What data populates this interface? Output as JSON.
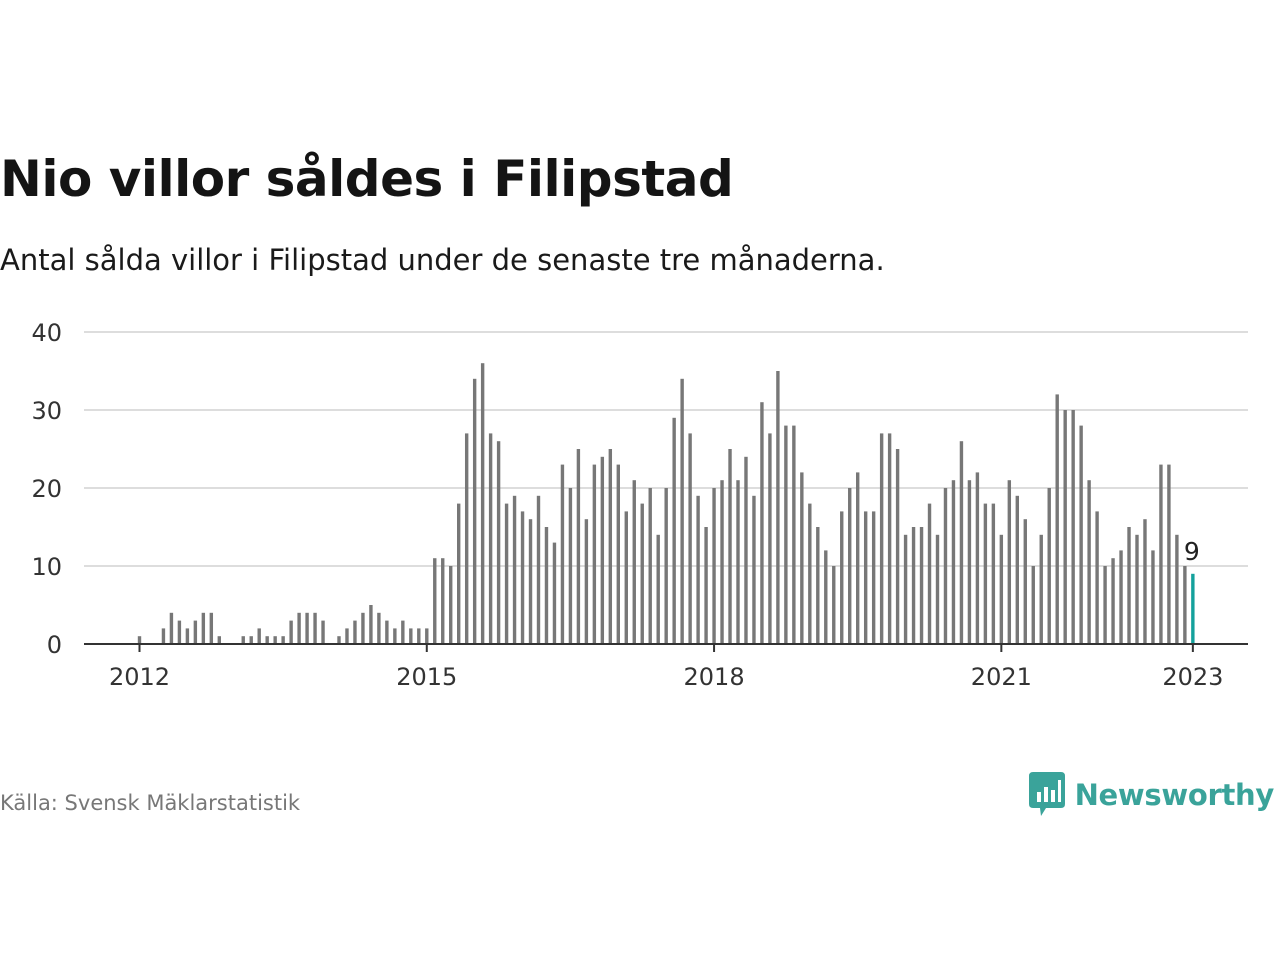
{
  "title": "Nio villor såldes i Filipstad",
  "subtitle": "Antal sålda villor i Filipstad under de senaste tre månaderna.",
  "source": "Källa: Svensk Mäklarstatistik",
  "brand": {
    "name": "Newsworthy",
    "icon": "newsworthy-logo-icon",
    "color": "#3aa39a"
  },
  "colors": {
    "bar": "#777777",
    "highlight": "#14a19c",
    "grid": "#dddddd",
    "axis": "#333333",
    "text": "#333333"
  },
  "chart_data": {
    "type": "bar",
    "title": "",
    "xlabel": "",
    "ylabel": "",
    "ylim": [
      0,
      40
    ],
    "yticks": [
      0,
      10,
      20,
      30,
      40
    ],
    "xtick_labels": [
      "2012",
      "2015",
      "2018",
      "2021",
      "2023"
    ],
    "grid": true,
    "start": "2012-01",
    "end": "2023-01",
    "values": [
      1,
      0,
      0,
      2,
      4,
      3,
      2,
      3,
      4,
      4,
      1,
      0,
      0,
      1,
      1,
      2,
      1,
      1,
      1,
      3,
      4,
      4,
      4,
      3,
      0,
      1,
      2,
      3,
      4,
      5,
      4,
      3,
      2,
      3,
      2,
      2,
      2,
      11,
      11,
      10,
      18,
      27,
      34,
      36,
      27,
      26,
      18,
      19,
      17,
      16,
      19,
      15,
      13,
      23,
      20,
      25,
      16,
      23,
      24,
      25,
      23,
      17,
      21,
      18,
      20,
      14,
      20,
      29,
      34,
      27,
      19,
      15,
      20,
      21,
      25,
      21,
      24,
      19,
      31,
      27,
      35,
      28,
      28,
      22,
      18,
      15,
      12,
      10,
      17,
      20,
      22,
      17,
      17,
      27,
      27,
      25,
      14,
      15,
      15,
      18,
      14,
      20,
      21,
      26,
      21,
      22,
      18,
      18,
      14,
      21,
      19,
      16,
      10,
      14,
      20,
      32,
      30,
      30,
      28,
      21,
      17,
      10,
      11,
      12,
      15,
      14,
      16,
      12,
      23,
      23,
      14,
      10,
      9
    ],
    "highlight_last": true,
    "annotations": [
      {
        "text": "9",
        "target": "last"
      }
    ]
  }
}
